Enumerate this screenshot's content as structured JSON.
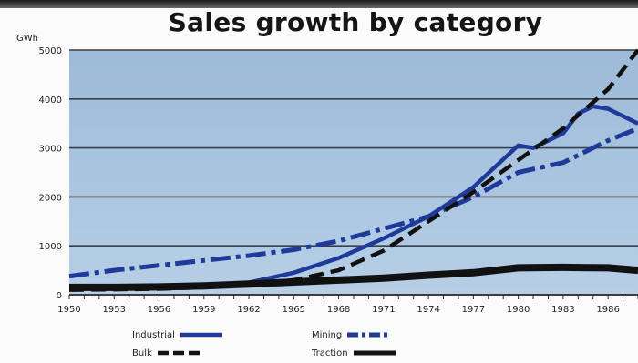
{
  "chart_data": {
    "type": "line",
    "title": "Sales growth by category",
    "ylabel": "GWh",
    "xlabel": "",
    "xlim": [
      1950,
      1988
    ],
    "ylim": [
      0,
      5000
    ],
    "yticks": [
      0,
      1000,
      2000,
      3000,
      4000,
      5000
    ],
    "xticks": [
      1950,
      1953,
      1956,
      1959,
      1962,
      1965,
      1968,
      1971,
      1974,
      1977,
      1980,
      1983,
      1986
    ],
    "grid": true,
    "legend": "bottom",
    "series": [
      {
        "name": "Industrial",
        "style": "solid",
        "color": "#1e3a9a",
        "x": [
          1950,
          1953,
          1956,
          1959,
          1962,
          1965,
          1968,
          1971,
          1974,
          1977,
          1980,
          1981,
          1983,
          1984,
          1985,
          1986,
          1988
        ],
        "y": [
          120,
          140,
          150,
          180,
          250,
          450,
          750,
          1150,
          1600,
          2200,
          3050,
          3000,
          3300,
          3700,
          3850,
          3800,
          3500
        ]
      },
      {
        "name": "Mining",
        "style": "dashdot",
        "color": "#1e3a9a",
        "x": [
          1950,
          1953,
          1956,
          1959,
          1962,
          1965,
          1968,
          1971,
          1974,
          1977,
          1980,
          1983,
          1986,
          1988
        ],
        "y": [
          380,
          500,
          600,
          700,
          800,
          920,
          1100,
          1350,
          1600,
          2000,
          2500,
          2700,
          3150,
          3400
        ]
      },
      {
        "name": "Bulk",
        "style": "dashed",
        "color": "#111111",
        "x": [
          1950,
          1953,
          1956,
          1959,
          1962,
          1965,
          1968,
          1971,
          1974,
          1977,
          1980,
          1983,
          1986,
          1988
        ],
        "y": [
          100,
          110,
          120,
          150,
          200,
          300,
          500,
          900,
          1500,
          2100,
          2750,
          3400,
          4200,
          5000
        ]
      },
      {
        "name": "Traction",
        "style": "thick",
        "color": "#111111",
        "x": [
          1950,
          1953,
          1956,
          1959,
          1962,
          1965,
          1968,
          1971,
          1974,
          1977,
          1980,
          1983,
          1986,
          1988
        ],
        "y": [
          150,
          150,
          160,
          180,
          220,
          260,
          300,
          340,
          400,
          450,
          550,
          560,
          550,
          500
        ]
      }
    ]
  }
}
